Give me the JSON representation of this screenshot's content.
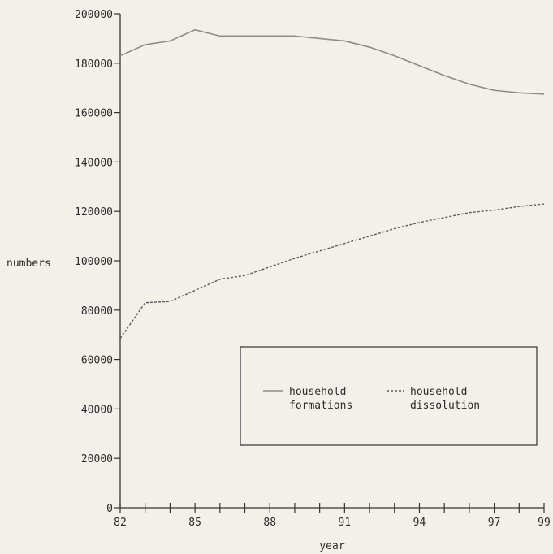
{
  "chart_data": {
    "type": "line",
    "xlabel": "year",
    "ylabel": "numbers",
    "x": [
      82,
      83,
      84,
      85,
      86,
      87,
      88,
      89,
      90,
      91,
      92,
      93,
      94,
      95,
      96,
      97,
      98,
      99
    ],
    "xlim": [
      82,
      99
    ],
    "ylim": [
      0,
      200000
    ],
    "x_tick_labels": [
      "82",
      "85",
      "88",
      "91",
      "94",
      "97",
      "99"
    ],
    "x_tick_values": [
      82,
      85,
      88,
      91,
      94,
      97,
      99
    ],
    "y_ticks": [
      0,
      20000,
      40000,
      60000,
      80000,
      100000,
      120000,
      140000,
      160000,
      180000,
      200000
    ],
    "y_tick_labels": [
      "0",
      "20000",
      "40000",
      "60000",
      "80000",
      "100000",
      "120000",
      "140000",
      "160000",
      "180000",
      "200000"
    ],
    "grid": false,
    "legend_position": "lower-right",
    "series": [
      {
        "name": "household formations",
        "name_lines": [
          "household",
          "formations"
        ],
        "style": "solid",
        "color": "#8c8c8c",
        "values": [
          183000,
          187500,
          189000,
          193500,
          191000,
          191000,
          191000,
          191000,
          190000,
          189000,
          186500,
          183000,
          179000,
          175000,
          171500,
          169000,
          168000,
          167500
        ]
      },
      {
        "name": "household dissolution",
        "name_lines": [
          "household",
          "dissolution"
        ],
        "style": "dashed",
        "color": "#5a5a5a",
        "values": [
          68500,
          83000,
          83500,
          88000,
          92500,
          94000,
          97500,
          101000,
          104000,
          107000,
          110000,
          113000,
          115500,
          117500,
          119500,
          120500,
          122000,
          123000
        ]
      }
    ]
  }
}
